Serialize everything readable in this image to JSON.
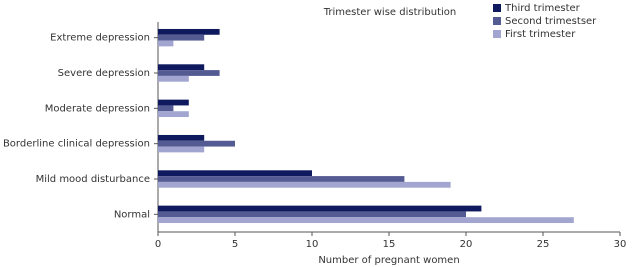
{
  "chart_data": {
    "type": "bar",
    "orientation": "horizontal",
    "title": "Trimester wise distribution",
    "x_label": "Number of pregnant women",
    "categories": [
      "Extreme depression",
      "Severe depression",
      "Moderate depression",
      "Borderline clinical depression",
      "Mild mood disturbance",
      "Normal"
    ],
    "series": [
      {
        "name": "Third trimester",
        "color": "#0f1a5e",
        "values": [
          4,
          3,
          2,
          3,
          10,
          21
        ]
      },
      {
        "name": "Second trimestser",
        "color": "#545a92",
        "values": [
          3,
          4,
          1,
          5,
          16,
          20
        ]
      },
      {
        "name": "First trimester",
        "color": "#a1a5cf",
        "values": [
          1,
          2,
          2,
          3,
          19,
          27
        ]
      }
    ],
    "xlim": [
      0,
      30
    ],
    "xticks": [
      0,
      5,
      10,
      15,
      20,
      25,
      30
    ],
    "grid": false,
    "legend": "top-right"
  }
}
